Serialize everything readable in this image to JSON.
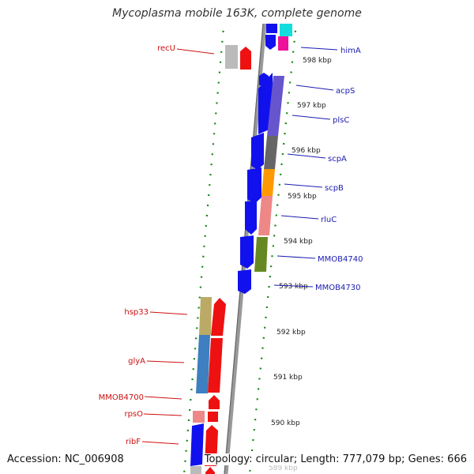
{
  "title": "Mycoplasma mobile 163K, complete genome",
  "footer": {
    "accession": "Accession: NC_006908",
    "topology": "Topology: circular; Length: 777,079 bp; Genes: 666"
  },
  "ticks": [
    "598 kbp",
    "597 kbp",
    "596 kbp",
    "595 kbp",
    "594 kbp",
    "593 kbp",
    "592 kbp",
    "591 kbp",
    "590 kbp",
    "589 kbp"
  ],
  "genes_right": [
    "himA",
    "acpS",
    "plsC",
    "scpA",
    "scpB",
    "rluC",
    "MMOB4740",
    "MMOB4730"
  ],
  "genes_left": [
    "recU",
    "hsp33",
    "glyA",
    "MMOB4700",
    "rpsO",
    "ribF"
  ],
  "colors": {
    "cds_forward": "#1111ee",
    "cds_reverse": "#ee1111",
    "backbone": "#888888",
    "ruler_dots": "#118811",
    "label_right": "#1b1bb0",
    "label_left": "#cc1111"
  }
}
